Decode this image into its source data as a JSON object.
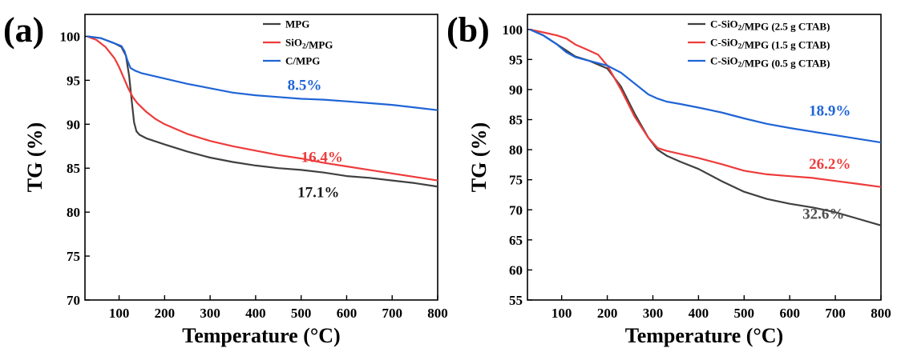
{
  "chart_data": [
    {
      "type": "line",
      "panel_label": "(a)",
      "xlabel": "Temperature (°C)",
      "ylabel": "TG (%)",
      "xlim": [
        25,
        800
      ],
      "ylim": [
        70,
        102.5
      ],
      "xticks": [
        100,
        200,
        300,
        400,
        500,
        600,
        700,
        800
      ],
      "yticks": [
        70,
        75,
        80,
        85,
        90,
        95,
        100
      ],
      "legend_position": "top-right",
      "series": [
        {
          "name": "MPG",
          "color": "#404040",
          "x": [
            30,
            60,
            90,
            105,
            115,
            122,
            128,
            133,
            138,
            145,
            160,
            200,
            250,
            300,
            350,
            400,
            450,
            500,
            550,
            600,
            650,
            700,
            750,
            800
          ],
          "y": [
            100,
            99.8,
            99.2,
            98.8,
            97.8,
            95.5,
            92.5,
            90.2,
            89.2,
            88.8,
            88.4,
            87.7,
            86.9,
            86.2,
            85.7,
            85.3,
            85.0,
            84.8,
            84.5,
            84.1,
            83.9,
            83.6,
            83.3,
            82.9
          ]
        },
        {
          "name": "SiO₂/MPG",
          "color": "#ee3b3b",
          "x": [
            30,
            50,
            70,
            90,
            100,
            110,
            120,
            130,
            140,
            160,
            180,
            200,
            250,
            300,
            350,
            400,
            450,
            500,
            550,
            600,
            650,
            700,
            750,
            800
          ],
          "y": [
            100,
            99.6,
            98.8,
            97.5,
            96.5,
            95.3,
            94.1,
            93.1,
            92.4,
            91.4,
            90.6,
            90.0,
            88.9,
            88.1,
            87.5,
            87.0,
            86.5,
            86.1,
            85.6,
            85.2,
            84.8,
            84.4,
            84.0,
            83.6
          ]
        },
        {
          "name": "C/MPG",
          "color": "#1f64d6",
          "x": [
            30,
            60,
            90,
            105,
            112,
            118,
            125,
            135,
            150,
            200,
            250,
            300,
            350,
            400,
            450,
            500,
            550,
            600,
            650,
            700,
            750,
            800
          ],
          "y": [
            100,
            99.8,
            99.2,
            98.9,
            98.3,
            97.3,
            96.4,
            96.1,
            95.8,
            95.2,
            94.6,
            94.1,
            93.6,
            93.3,
            93.1,
            92.9,
            92.8,
            92.6,
            92.4,
            92.2,
            91.9,
            91.6
          ]
        }
      ],
      "annotations": [
        {
          "text": "8.5%",
          "color": "#1f64d6",
          "x": 470,
          "y": 93.9
        },
        {
          "text": "16.4%",
          "color": "#ee3b3b",
          "x": 500,
          "y": 85.7
        },
        {
          "text": "17.1%",
          "color": "#1a1a1a",
          "x": 492,
          "y": 81.7
        }
      ]
    },
    {
      "type": "line",
      "panel_label": "(b)",
      "xlabel": "Temperature (°C)",
      "ylabel": "TG (%)",
      "xlim": [
        25,
        800
      ],
      "ylim": [
        55,
        102.5
      ],
      "xticks": [
        100,
        200,
        300,
        400,
        500,
        600,
        700,
        800
      ],
      "yticks": [
        55,
        60,
        65,
        70,
        75,
        80,
        85,
        90,
        95,
        100
      ],
      "legend_position": "top-right",
      "series": [
        {
          "name": "C-SiO₂/MPG (2.5 g CTAB)",
          "color": "#404040",
          "x": [
            30,
            60,
            90,
            110,
            130,
            160,
            200,
            230,
            260,
            290,
            310,
            330,
            360,
            400,
            450,
            500,
            550,
            600,
            650,
            700,
            750,
            800
          ],
          "y": [
            100,
            99,
            97.5,
            96.5,
            95.5,
            94.8,
            93.5,
            90.5,
            86.0,
            82.0,
            80.0,
            79.0,
            78.0,
            76.8,
            74.8,
            73.0,
            71.8,
            71.0,
            70.4,
            69.6,
            68.5,
            67.4
          ]
        },
        {
          "name": "C-SiO₂/MPG (1.5 g CTAB)",
          "color": "#ee3b3b",
          "x": [
            30,
            60,
            90,
            110,
            130,
            160,
            180,
            200,
            230,
            260,
            290,
            310,
            330,
            360,
            400,
            450,
            500,
            550,
            600,
            650,
            700,
            750,
            800
          ],
          "y": [
            100,
            99.5,
            99.0,
            98.5,
            97.5,
            96.5,
            95.8,
            94.0,
            90.0,
            85.5,
            82.0,
            80.3,
            79.8,
            79.3,
            78.6,
            77.6,
            76.5,
            75.9,
            75.6,
            75.3,
            74.8,
            74.3,
            73.8
          ]
        },
        {
          "name": "C-SiO₂/MPG (0.5 g CTAB)",
          "color": "#1f64d6",
          "x": [
            30,
            60,
            90,
            110,
            130,
            160,
            200,
            230,
            260,
            290,
            310,
            330,
            360,
            400,
            450,
            500,
            550,
            600,
            650,
            700,
            750,
            800
          ],
          "y": [
            100,
            99,
            97.5,
            96.2,
            95.4,
            94.8,
            94.0,
            92.8,
            91.0,
            89.2,
            88.5,
            88.0,
            87.6,
            87.0,
            86.2,
            85.2,
            84.3,
            83.6,
            83.0,
            82.4,
            81.8,
            81.2
          ]
        }
      ],
      "annotations": [
        {
          "text": "18.9%",
          "color": "#1f64d6",
          "x": 642,
          "y": 85.7
        },
        {
          "text": "26.2%",
          "color": "#ee3b3b",
          "x": 642,
          "y": 76.8
        },
        {
          "text": "32.6%",
          "color": "#505050",
          "x": 628,
          "y": 68.5
        }
      ]
    }
  ]
}
